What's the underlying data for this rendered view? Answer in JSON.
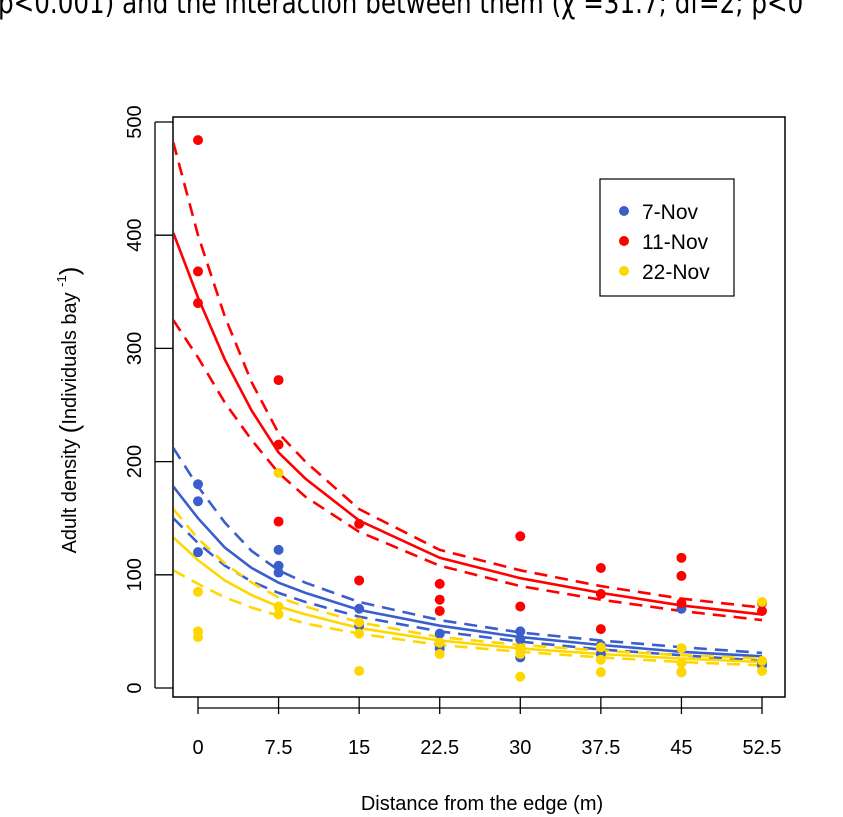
{
  "caption": {
    "text": "p<0.001) and the interaction between them (χ =31.7; df=2; p<0"
  },
  "colors": {
    "7-Nov": "#3a5fcd",
    "11-Nov": "#ff0000",
    "22-Nov": "#ffd700"
  },
  "chart_data": {
    "type": "scatter",
    "title": "",
    "xlabel": "Distance from the edge (m)",
    "ylabel": "Adult density (Individuals bay⁻¹)",
    "xlim": [
      -2.3,
      54.5
    ],
    "ylim": [
      -10,
      505
    ],
    "x_ticks": [
      "0",
      "7.5",
      "15",
      "22.5",
      "30",
      "37.5",
      "45",
      "52.5"
    ],
    "y_ticks": [
      "0",
      "100",
      "200",
      "300",
      "400",
      "500"
    ],
    "grid": false,
    "legend": {
      "position": "top-right",
      "entries": [
        "7-Nov",
        "11-Nov",
        "22-Nov"
      ]
    },
    "series": [
      {
        "name": "7-Nov",
        "points": [
          [
            0,
            180
          ],
          [
            0,
            165
          ],
          [
            0,
            120
          ],
          [
            7.5,
            122
          ],
          [
            7.5,
            108
          ],
          [
            7.5,
            102
          ],
          [
            15,
            70
          ],
          [
            15,
            55
          ],
          [
            22.5,
            48
          ],
          [
            22.5,
            40
          ],
          [
            22.5,
            35
          ],
          [
            30,
            50
          ],
          [
            30,
            43
          ],
          [
            30,
            27
          ],
          [
            37.5,
            38
          ],
          [
            37.5,
            30
          ],
          [
            45,
            70
          ],
          [
            45,
            35
          ],
          [
            45,
            14
          ],
          [
            52.5,
            22
          ],
          [
            52.5,
            20
          ]
        ],
        "fit": {
          "x": [
            -2.3,
            0,
            2.5,
            5,
            7.5,
            10,
            15,
            22.5,
            30,
            37.5,
            45,
            52.5
          ],
          "mean": [
            178,
            150,
            124,
            106,
            93,
            84,
            69,
            55,
            45,
            38,
            32,
            28
          ],
          "lower": [
            150,
            128,
            108,
            94,
            84,
            76,
            63,
            50,
            41,
            34,
            29,
            24
          ],
          "upper": [
            212,
            178,
            146,
            121,
            104,
            93,
            76,
            60,
            49,
            42,
            36,
            31
          ]
        }
      },
      {
        "name": "11-Nov",
        "points": [
          [
            0,
            484
          ],
          [
            0,
            368
          ],
          [
            0,
            340
          ],
          [
            7.5,
            272
          ],
          [
            7.5,
            215
          ],
          [
            7.5,
            147
          ],
          [
            15,
            145
          ],
          [
            15,
            95
          ],
          [
            22.5,
            92
          ],
          [
            22.5,
            78
          ],
          [
            22.5,
            68
          ],
          [
            30,
            134
          ],
          [
            30,
            72
          ],
          [
            30,
            35
          ],
          [
            37.5,
            106
          ],
          [
            37.5,
            83
          ],
          [
            37.5,
            52
          ],
          [
            45,
            115
          ],
          [
            45,
            99
          ],
          [
            45,
            75
          ],
          [
            52.5,
            75
          ],
          [
            52.5,
            68
          ]
        ],
        "fit": {
          "x": [
            -2.3,
            0,
            2.5,
            5,
            7.5,
            10,
            15,
            22.5,
            30,
            37.5,
            45,
            52.5
          ],
          "mean": [
            402,
            345,
            290,
            245,
            208,
            185,
            148,
            115,
            97,
            84,
            73,
            65
          ],
          "lower": [
            325,
            292,
            252,
            219,
            190,
            169,
            138,
            108,
            90,
            78,
            68,
            60
          ],
          "upper": [
            482,
            400,
            328,
            270,
            225,
            200,
            158,
            122,
            104,
            90,
            79,
            71
          ]
        }
      },
      {
        "name": "22-Nov",
        "points": [
          [
            0,
            85
          ],
          [
            0,
            50
          ],
          [
            0,
            45
          ],
          [
            7.5,
            190
          ],
          [
            7.5,
            72
          ],
          [
            7.5,
            65
          ],
          [
            15,
            58
          ],
          [
            15,
            48
          ],
          [
            15,
            15
          ],
          [
            22.5,
            40
          ],
          [
            22.5,
            30
          ],
          [
            30,
            35
          ],
          [
            30,
            30
          ],
          [
            30,
            10
          ],
          [
            37.5,
            36
          ],
          [
            37.5,
            25
          ],
          [
            37.5,
            14
          ],
          [
            45,
            35
          ],
          [
            45,
            22
          ],
          [
            45,
            14
          ],
          [
            52.5,
            76
          ],
          [
            52.5,
            24
          ],
          [
            52.5,
            15
          ]
        ],
        "fit": {
          "x": [
            -2.3,
            0,
            2.5,
            5,
            7.5,
            10,
            15,
            22.5,
            30,
            37.5,
            45,
            52.5
          ],
          "mean": [
            133,
            113,
            95,
            82,
            72,
            65,
            53,
            42,
            35,
            30,
            26,
            23
          ],
          "lower": [
            104,
            92,
            80,
            71,
            64,
            57,
            48,
            38,
            32,
            27,
            23,
            20
          ],
          "upper": [
            158,
            132,
            110,
            93,
            80,
            72,
            58,
            45,
            38,
            33,
            29,
            26
          ]
        }
      }
    ]
  }
}
